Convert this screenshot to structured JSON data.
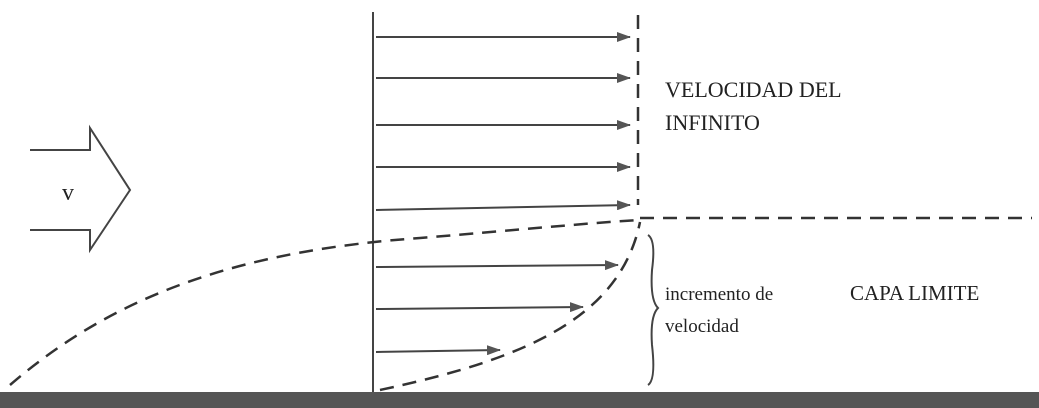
{
  "diagram": {
    "flow_label": "v",
    "free_stream_label": [
      "VELOCIDAD DEL",
      "INFINITO"
    ],
    "increment_label": [
      "incremento de",
      "velocidad"
    ],
    "boundary_layer_label": "CAPA LIMITE"
  }
}
